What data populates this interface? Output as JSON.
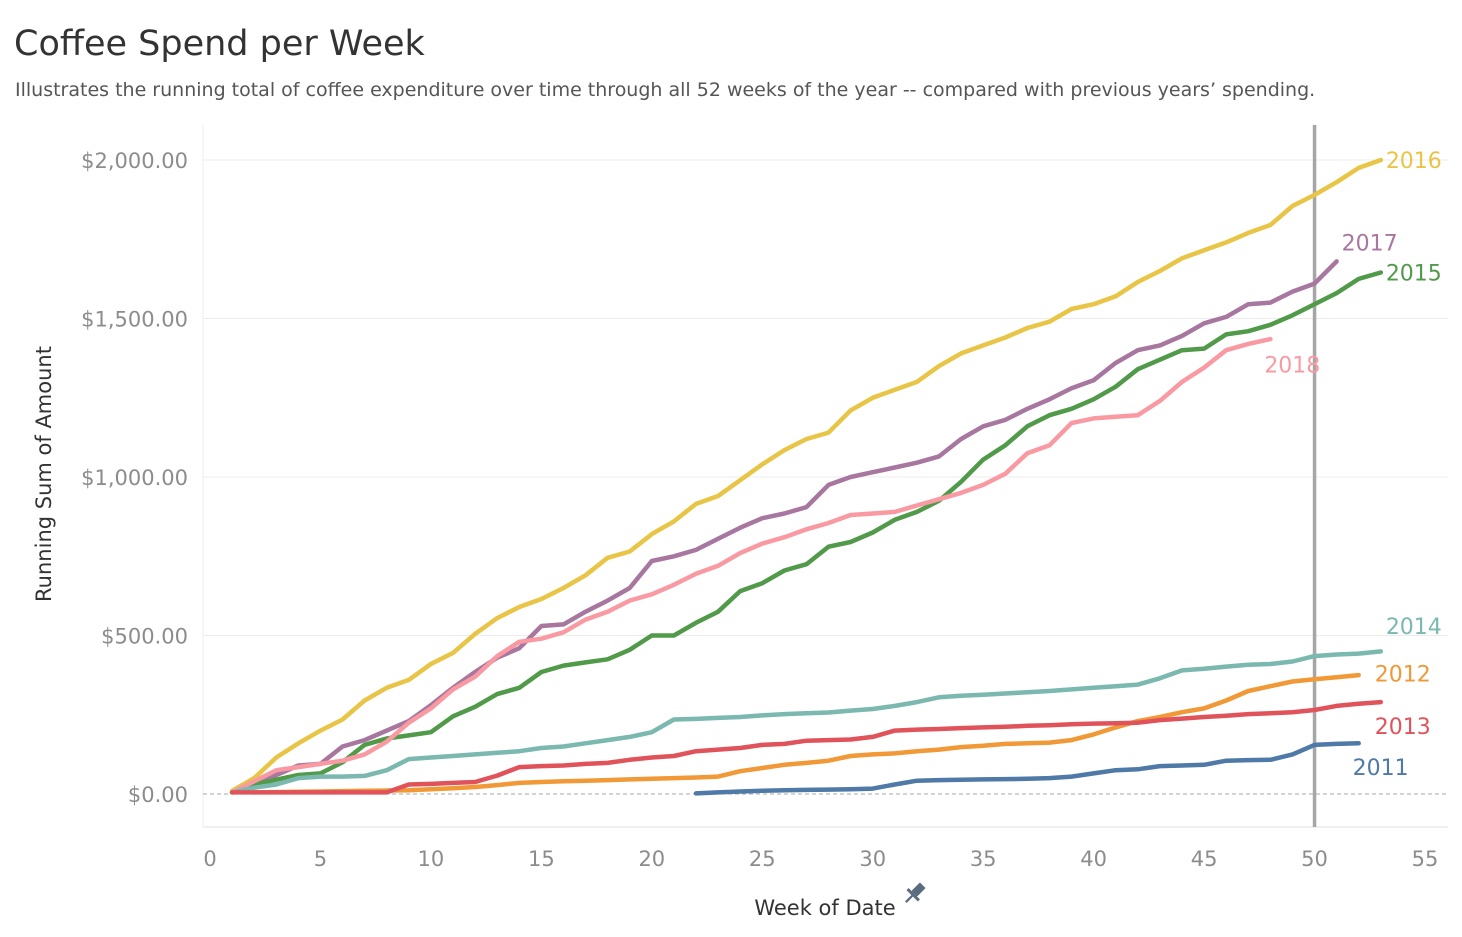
{
  "title": "Coffee Spend per Week",
  "subtitle": "Illustrates the running total of coffee expenditure over time through all 52 weeks of the year -- compared with previous years’ spending.",
  "chart_data": {
    "type": "line",
    "xlabel": "Week of Date",
    "ylabel": "Running Sum of Amount",
    "xlim": [
      0,
      55
    ],
    "ylim": [
      -80,
      2110
    ],
    "x_ticks": [
      "0",
      "5",
      "10",
      "15",
      "20",
      "25",
      "30",
      "35",
      "40",
      "45",
      "50",
      "55"
    ],
    "y_ticks": [
      "$0.00",
      "$500.00",
      "$1,000.00",
      "$1,500.00",
      "$2,000.00"
    ],
    "y_tick_values": [
      0,
      500,
      1000,
      1500,
      2000
    ],
    "x_tick_values": [
      0,
      5,
      10,
      15,
      20,
      25,
      30,
      35,
      40,
      45,
      50,
      55
    ],
    "grid": true,
    "reference_line": {
      "axis": "x",
      "value": 50,
      "color": "#a6a6a6"
    },
    "zero_line": {
      "style": "dashed",
      "color": "#aaaaaa"
    },
    "series": [
      {
        "name": "2016",
        "color": "#e8c547",
        "x": [
          1,
          2,
          3,
          4,
          5,
          6,
          7,
          8,
          9,
          10,
          11,
          12,
          13,
          14,
          15,
          16,
          17,
          18,
          19,
          20,
          21,
          22,
          23,
          24,
          25,
          26,
          27,
          28,
          29,
          30,
          31,
          32,
          33,
          34,
          35,
          36,
          37,
          38,
          39,
          40,
          41,
          42,
          43,
          44,
          45,
          46,
          47,
          48,
          49,
          50,
          51,
          52,
          53
        ],
        "y": [
          10,
          50,
          115,
          160,
          200,
          235,
          295,
          335,
          360,
          410,
          445,
          505,
          555,
          590,
          615,
          650,
          690,
          745,
          765,
          820,
          860,
          915,
          940,
          990,
          1040,
          1085,
          1120,
          1140,
          1210,
          1250,
          1275,
          1300,
          1350,
          1390,
          1415,
          1440,
          1470,
          1490,
          1530,
          1545,
          1570,
          1615,
          1650,
          1690,
          1715,
          1740,
          1770,
          1795,
          1855,
          1890,
          1930,
          1975,
          2000
        ]
      },
      {
        "name": "2017",
        "color": "#a8779f",
        "x": [
          1,
          2,
          3,
          4,
          5,
          6,
          7,
          8,
          9,
          10,
          11,
          12,
          13,
          14,
          15,
          16,
          17,
          18,
          19,
          20,
          21,
          22,
          23,
          24,
          25,
          26,
          27,
          28,
          29,
          30,
          31,
          32,
          33,
          34,
          35,
          36,
          37,
          38,
          39,
          40,
          41,
          42,
          43,
          44,
          45,
          46,
          47,
          48,
          49,
          50,
          51
        ],
        "y": [
          5,
          25,
          60,
          90,
          95,
          150,
          170,
          200,
          230,
          280,
          335,
          385,
          430,
          460,
          530,
          535,
          575,
          610,
          650,
          735,
          750,
          770,
          805,
          840,
          870,
          885,
          905,
          975,
          1000,
          1015,
          1030,
          1045,
          1065,
          1120,
          1160,
          1180,
          1215,
          1245,
          1280,
          1305,
          1360,
          1400,
          1415,
          1445,
          1485,
          1505,
          1545,
          1550,
          1585,
          1610,
          1680
        ]
      },
      {
        "name": "2015",
        "color": "#519a4a",
        "x": [
          1,
          2,
          3,
          4,
          5,
          6,
          7,
          8,
          9,
          10,
          11,
          12,
          13,
          14,
          15,
          16,
          17,
          18,
          19,
          20,
          21,
          22,
          23,
          24,
          25,
          26,
          27,
          28,
          29,
          30,
          31,
          32,
          33,
          34,
          35,
          36,
          37,
          38,
          39,
          40,
          41,
          42,
          43,
          44,
          45,
          46,
          47,
          48,
          49,
          50,
          51,
          52,
          53
        ],
        "y": [
          5,
          30,
          45,
          60,
          65,
          100,
          155,
          175,
          185,
          195,
          245,
          275,
          315,
          335,
          385,
          405,
          415,
          425,
          455,
          500,
          500,
          540,
          575,
          640,
          665,
          705,
          725,
          780,
          795,
          825,
          865,
          890,
          925,
          985,
          1055,
          1100,
          1160,
          1195,
          1215,
          1245,
          1285,
          1340,
          1370,
          1400,
          1405,
          1450,
          1460,
          1480,
          1510,
          1545,
          1580,
          1625,
          1645
        ]
      },
      {
        "name": "2018",
        "color": "#f99aa3",
        "x": [
          1,
          2,
          3,
          4,
          5,
          6,
          7,
          8,
          9,
          10,
          11,
          12,
          13,
          14,
          15,
          16,
          17,
          18,
          19,
          20,
          21,
          22,
          23,
          24,
          25,
          26,
          27,
          28,
          29,
          30,
          31,
          32,
          33,
          34,
          35,
          36,
          37,
          38,
          39,
          40,
          41,
          42,
          43,
          44,
          45,
          46,
          47,
          48
        ],
        "y": [
          5,
          40,
          75,
          85,
          95,
          105,
          125,
          165,
          225,
          270,
          330,
          370,
          435,
          480,
          490,
          510,
          550,
          575,
          610,
          630,
          660,
          695,
          720,
          760,
          790,
          810,
          835,
          855,
          880,
          885,
          890,
          910,
          930,
          950,
          975,
          1010,
          1075,
          1100,
          1170,
          1185,
          1190,
          1195,
          1240,
          1300,
          1345,
          1400,
          1420,
          1435
        ]
      },
      {
        "name": "2014",
        "color": "#7ab8b0",
        "x": [
          1,
          2,
          3,
          4,
          5,
          6,
          7,
          8,
          9,
          10,
          11,
          12,
          13,
          14,
          15,
          16,
          17,
          18,
          19,
          20,
          21,
          22,
          23,
          24,
          25,
          26,
          27,
          28,
          29,
          30,
          31,
          32,
          33,
          34,
          35,
          36,
          37,
          38,
          39,
          40,
          41,
          42,
          43,
          44,
          45,
          46,
          47,
          48,
          49,
          50,
          51,
          52,
          53
        ],
        "y": [
          5,
          20,
          30,
          50,
          55,
          55,
          57,
          75,
          110,
          115,
          120,
          125,
          130,
          135,
          145,
          150,
          160,
          170,
          180,
          195,
          235,
          237,
          240,
          243,
          248,
          252,
          255,
          257,
          263,
          268,
          278,
          290,
          305,
          310,
          313,
          317,
          321,
          325,
          330,
          335,
          340,
          345,
          365,
          390,
          395,
          402,
          408,
          410,
          418,
          435,
          440,
          443,
          450
        ]
      },
      {
        "name": "2012",
        "color": "#f19837",
        "x": [
          2,
          3,
          4,
          5,
          6,
          7,
          8,
          9,
          10,
          11,
          12,
          13,
          14,
          15,
          16,
          17,
          18,
          19,
          20,
          21,
          22,
          23,
          24,
          25,
          26,
          27,
          28,
          29,
          30,
          31,
          32,
          33,
          34,
          35,
          36,
          37,
          38,
          39,
          40,
          41,
          42,
          43,
          44,
          45,
          46,
          47,
          48,
          49,
          50,
          51,
          52
        ],
        "y": [
          5,
          6,
          7,
          8,
          9,
          10,
          11,
          12,
          15,
          18,
          22,
          28,
          35,
          38,
          40,
          42,
          44,
          46,
          48,
          50,
          52,
          55,
          72,
          82,
          92,
          98,
          105,
          120,
          125,
          128,
          135,
          140,
          148,
          152,
          158,
          160,
          162,
          170,
          188,
          210,
          230,
          243,
          258,
          270,
          295,
          325,
          340,
          355,
          362,
          368,
          375
        ]
      },
      {
        "name": "2013",
        "color": "#e0535b",
        "x": [
          1,
          2,
          3,
          4,
          5,
          6,
          7,
          8,
          9,
          10,
          11,
          12,
          13,
          14,
          15,
          16,
          17,
          18,
          19,
          20,
          21,
          22,
          23,
          24,
          25,
          26,
          27,
          28,
          29,
          30,
          31,
          32,
          33,
          34,
          35,
          36,
          37,
          38,
          39,
          40,
          41,
          42,
          43,
          44,
          45,
          46,
          47,
          48,
          49,
          50,
          51,
          52,
          53
        ],
        "y": [
          5,
          5,
          5,
          5,
          5,
          5,
          5,
          5,
          30,
          32,
          35,
          38,
          58,
          85,
          88,
          90,
          95,
          98,
          108,
          115,
          120,
          135,
          140,
          145,
          155,
          158,
          168,
          170,
          172,
          180,
          200,
          203,
          205,
          208,
          210,
          212,
          215,
          217,
          220,
          222,
          223,
          225,
          233,
          238,
          243,
          247,
          252,
          255,
          258,
          265,
          278,
          285,
          290
        ]
      },
      {
        "name": "2011",
        "color": "#4f79a6",
        "x": [
          22,
          23,
          24,
          25,
          26,
          27,
          28,
          29,
          30,
          31,
          32,
          33,
          34,
          35,
          36,
          37,
          38,
          39,
          40,
          41,
          42,
          43,
          44,
          45,
          46,
          47,
          48,
          49,
          50,
          51,
          52
        ],
        "y": [
          2,
          5,
          8,
          10,
          12,
          13,
          14,
          15,
          17,
          30,
          42,
          44,
          45,
          46,
          47,
          48,
          50,
          55,
          65,
          75,
          78,
          88,
          90,
          92,
          105,
          107,
          108,
          125,
          155,
          158,
          160
        ]
      }
    ],
    "series_labels": [
      {
        "name": "2016",
        "anchor_x": 53,
        "anchor_y": 2000
      },
      {
        "name": "2017",
        "anchor_x": 51,
        "anchor_y": 1740
      },
      {
        "name": "2015",
        "anchor_x": 53,
        "anchor_y": 1645
      },
      {
        "name": "2018",
        "anchor_x": 47.5,
        "anchor_y": 1355
      },
      {
        "name": "2014",
        "anchor_x": 53,
        "anchor_y": 530
      },
      {
        "name": "2012",
        "anchor_x": 52.5,
        "anchor_y": 380
      },
      {
        "name": "2013",
        "anchor_x": 52.5,
        "anchor_y": 215
      },
      {
        "name": "2011",
        "anchor_x": 51.5,
        "anchor_y": 85
      }
    ]
  },
  "icons": {
    "xlabel_pin": "pin-icon"
  }
}
